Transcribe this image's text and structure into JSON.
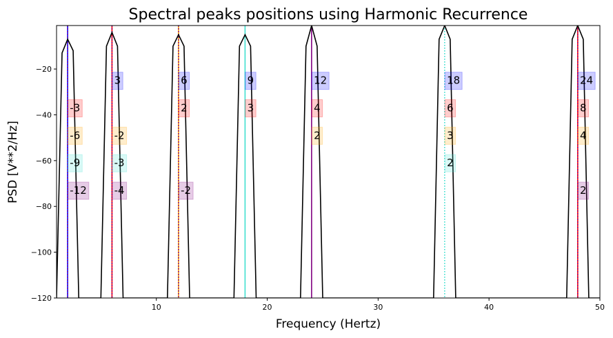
{
  "chart_data": {
    "type": "line",
    "title": "Spectral peaks positions using Harmonic Recurrence",
    "xlabel": "Frequency (Hertz)",
    "ylabel": "PSD [V**2/Hz]",
    "xlim": [
      1,
      50
    ],
    "ylim": [
      -120,
      -1
    ],
    "xticks": [
      10,
      20,
      30,
      40,
      50
    ],
    "yticks": [
      -120,
      -100,
      -80,
      -60,
      -40,
      -20
    ],
    "grid": false,
    "legend": "none",
    "series": [
      {
        "color": "#000000",
        "x": [
          1,
          1.5,
          2,
          2.5,
          3,
          3.5,
          5,
          5.5,
          6,
          6.5,
          7,
          11,
          11.5,
          12,
          12.5,
          13,
          17,
          17.5,
          18,
          18.5,
          19,
          23,
          23.5,
          24,
          24.5,
          25,
          35,
          35.5,
          36,
          36.5,
          37,
          47,
          47.5,
          48,
          48.5,
          49,
          50
        ],
        "y": [
          -120,
          -13,
          -7,
          -12,
          -120,
          -120,
          -120,
          -10,
          -4,
          -10,
          -120,
          -120,
          -10,
          -5,
          -10,
          -120,
          -120,
          -10,
          -5,
          -10,
          -120,
          -120,
          -10,
          -1,
          -10,
          -120,
          -120,
          -7,
          -1,
          -7,
          -120,
          -120,
          -7,
          -1,
          -7,
          -120,
          -120
        ]
      }
    ],
    "vertical_lines": [
      {
        "x": 2,
        "color": "#0000ff",
        "style": "solid"
      },
      {
        "x": 2,
        "color": "#800080",
        "style": "dotted"
      },
      {
        "x": 6,
        "color": "#ff0000",
        "style": "solid"
      },
      {
        "x": 6,
        "color": "#800080",
        "style": "dotted"
      },
      {
        "x": 12,
        "color": "#ffa500",
        "style": "solid"
      },
      {
        "x": 12,
        "color": "#800080",
        "style": "dotted"
      },
      {
        "x": 18,
        "color": "#40e0d0",
        "style": "solid"
      },
      {
        "x": 24,
        "color": "#800080",
        "style": "solid"
      },
      {
        "x": 36,
        "color": "#40e0d0",
        "style": "dotted"
      },
      {
        "x": 48,
        "color": "#ff0000",
        "style": "solid"
      },
      {
        "x": 48,
        "color": "#800080",
        "style": "dotted"
      }
    ],
    "annotations": [
      {
        "x": 6.2,
        "y": -25,
        "text": "3",
        "color": "#0000ff"
      },
      {
        "x": 12.2,
        "y": -25,
        "text": "6",
        "color": "#0000ff"
      },
      {
        "x": 18.2,
        "y": -25,
        "text": "9",
        "color": "#0000ff"
      },
      {
        "x": 24.2,
        "y": -25,
        "text": "12",
        "color": "#0000ff"
      },
      {
        "x": 36.2,
        "y": -25,
        "text": "18",
        "color": "#0000ff"
      },
      {
        "x": 48.2,
        "y": -25,
        "text": "24",
        "color": "#0000ff"
      },
      {
        "x": 2.2,
        "y": -37,
        "text": "-3",
        "color": "#ff0000"
      },
      {
        "x": 12.2,
        "y": -37,
        "text": "2",
        "color": "#ff0000"
      },
      {
        "x": 18.2,
        "y": -37,
        "text": "3",
        "color": "#ff0000"
      },
      {
        "x": 24.2,
        "y": -37,
        "text": "4",
        "color": "#ff0000"
      },
      {
        "x": 36.2,
        "y": -37,
        "text": "6",
        "color": "#ff0000"
      },
      {
        "x": 48.2,
        "y": -37,
        "text": "8",
        "color": "#ff0000"
      },
      {
        "x": 2.2,
        "y": -49,
        "text": "-6",
        "color": "#ffa500"
      },
      {
        "x": 6.2,
        "y": -49,
        "text": "-2",
        "color": "#ffa500"
      },
      {
        "x": 24.2,
        "y": -49,
        "text": "2",
        "color": "#ffa500"
      },
      {
        "x": 36.2,
        "y": -49,
        "text": "3",
        "color": "#ffa500"
      },
      {
        "x": 48.2,
        "y": -49,
        "text": "4",
        "color": "#ffa500"
      },
      {
        "x": 2.2,
        "y": -61,
        "text": "-9",
        "color": "#40e0d0"
      },
      {
        "x": 6.2,
        "y": -61,
        "text": "-3",
        "color": "#40e0d0"
      },
      {
        "x": 36.2,
        "y": -61,
        "text": "2",
        "color": "#40e0d0"
      },
      {
        "x": 2.2,
        "y": -73,
        "text": "-12",
        "color": "#800080"
      },
      {
        "x": 6.2,
        "y": -73,
        "text": "-4",
        "color": "#800080"
      },
      {
        "x": 12.2,
        "y": -73,
        "text": "-2",
        "color": "#800080"
      },
      {
        "x": 48.2,
        "y": -73,
        "text": "2",
        "color": "#800080"
      }
    ]
  }
}
